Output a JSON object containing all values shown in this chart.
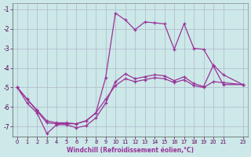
{
  "xlabel": "Windchill (Refroidissement éolien,°C)",
  "background_color": "#cce8e8",
  "grid_color": "#b0b8cc",
  "line_color": "#993399",
  "xlim": [
    -0.5,
    23.5
  ],
  "ylim": [
    -7.5,
    -0.7
  ],
  "yticks": [
    -7,
    -6,
    -5,
    -4,
    -3,
    -2,
    -1
  ],
  "xticks": [
    0,
    1,
    2,
    3,
    4,
    5,
    6,
    7,
    8,
    9,
    10,
    11,
    12,
    13,
    14,
    15,
    16,
    17,
    18,
    19,
    20,
    21,
    23
  ],
  "line1_x": [
    0,
    1,
    2,
    3,
    4,
    5,
    6,
    7,
    8,
    9,
    10,
    11,
    12,
    13,
    14,
    15,
    16,
    17,
    18,
    19,
    20,
    21,
    23
  ],
  "line1_y": [
    -5.0,
    -5.6,
    -6.2,
    -6.8,
    -6.85,
    -6.85,
    -6.85,
    -6.7,
    -6.3,
    -4.5,
    -1.2,
    -1.55,
    -2.05,
    -1.65,
    -1.7,
    -1.75,
    -3.05,
    -1.75,
    -3.0,
    -3.05,
    -3.9,
    -4.85,
    -4.85
  ],
  "line2_x": [
    0,
    1,
    2,
    3,
    4,
    5,
    6,
    7,
    8,
    9,
    10,
    11,
    12,
    13,
    14,
    15,
    16,
    17,
    18,
    19,
    20,
    21,
    23
  ],
  "line2_y": [
    -5.0,
    -5.8,
    -6.3,
    -7.35,
    -6.9,
    -6.9,
    -7.05,
    -6.95,
    -6.55,
    -5.8,
    -4.7,
    -4.3,
    -4.55,
    -4.45,
    -4.35,
    -4.4,
    -4.65,
    -4.45,
    -4.8,
    -4.95,
    -3.85,
    -4.35,
    -4.85
  ],
  "line3_x": [
    0,
    1,
    2,
    3,
    4,
    5,
    6,
    7,
    8,
    9,
    10,
    11,
    12,
    13,
    14,
    15,
    16,
    17,
    18,
    19,
    20,
    21,
    23
  ],
  "line3_y": [
    -5.0,
    -5.6,
    -6.15,
    -6.7,
    -6.8,
    -6.8,
    -6.85,
    -6.7,
    -6.3,
    -5.6,
    -4.9,
    -4.55,
    -4.7,
    -4.6,
    -4.5,
    -4.55,
    -4.75,
    -4.6,
    -4.9,
    -5.0,
    -4.7,
    -4.75,
    -4.85
  ]
}
